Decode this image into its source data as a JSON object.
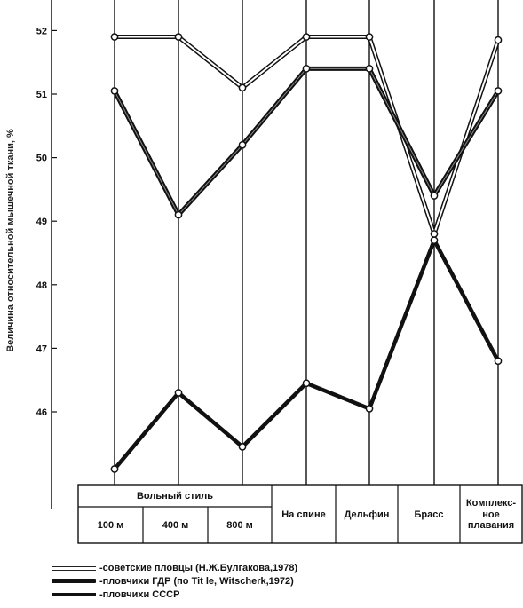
{
  "chart_data": {
    "type": "line",
    "ylabel": "Величина относительной мышечной ткани, %",
    "ylim": [
      44.9,
      52.5
    ],
    "yticks": [
      "46",
      "47",
      "48",
      "49",
      "50",
      "51",
      "52"
    ],
    "categories": [
      "100 м",
      "400 м",
      "800 м",
      "На спине",
      "Дельфин",
      "Брасс",
      "Комплекс-\nное\nплавания"
    ],
    "group_label": "Вольный стиль",
    "series": [
      {
        "name": "-советские пловцы (Н.Ж.Булгакова,1978)",
        "style": "double",
        "values": [
          51.9,
          51.9,
          51.1,
          51.9,
          51.9,
          48.8,
          51.85
        ]
      },
      {
        "name": "-пловчихи ГДР (по Tit le, Witscherk,1972)",
        "style": "thick-outline",
        "values": [
          51.05,
          49.1,
          50.2,
          51.4,
          51.4,
          49.4,
          51.05
        ]
      },
      {
        "name": "-пловчихи СССР",
        "style": "thick",
        "values": [
          45.1,
          46.3,
          45.45,
          46.45,
          46.05,
          48.7,
          46.8
        ]
      }
    ],
    "grid": false,
    "legend": "bottom-left"
  }
}
